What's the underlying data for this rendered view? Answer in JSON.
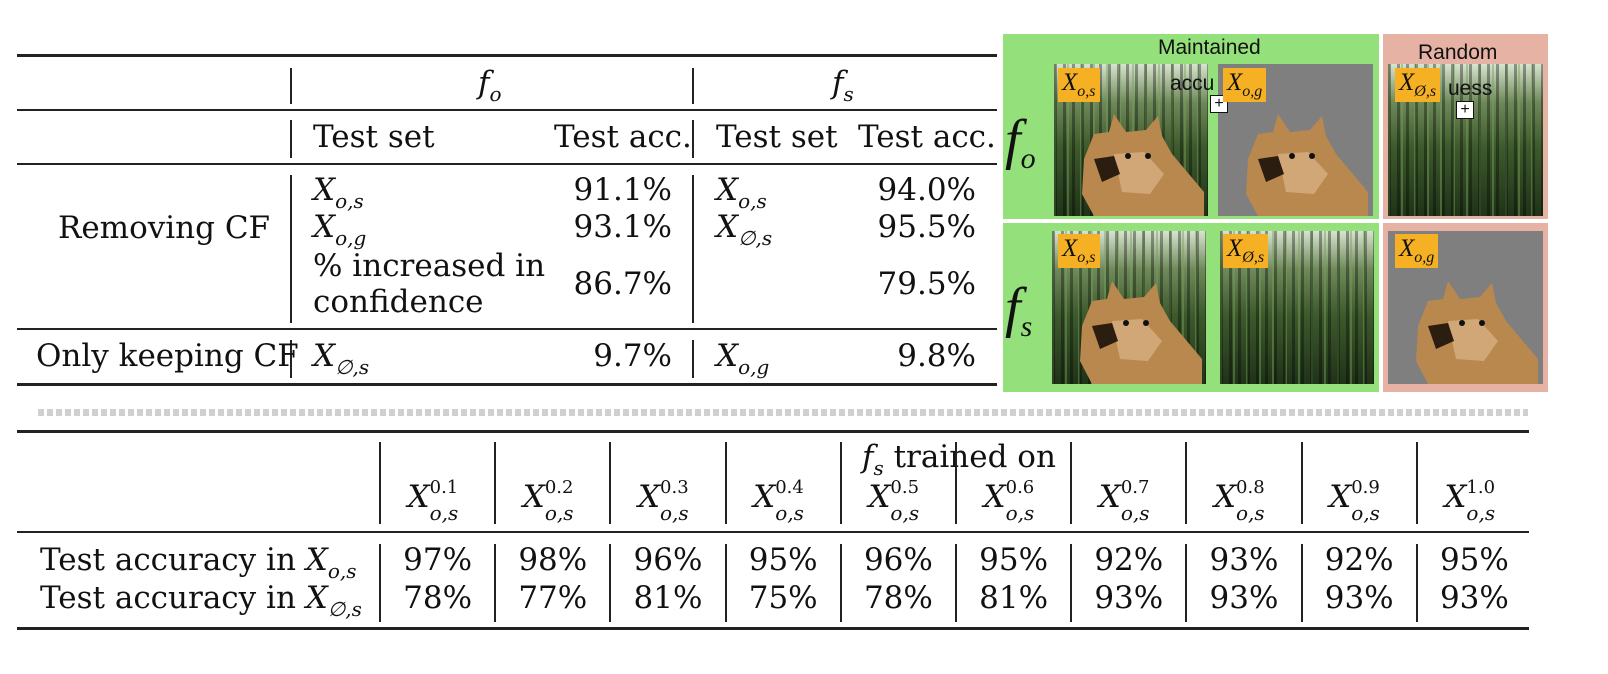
{
  "table1": {
    "group_fo": "f",
    "group_fo_sub": "o",
    "group_fs": "f",
    "group_fs_sub": "s",
    "col_test_set": "Test set",
    "col_test_acc": "Test acc.",
    "row_removing": "Removing CF",
    "row_keeping": "Only keeping CF",
    "r1_fo_set": "X",
    "r1_fo_set_sub": "o,s",
    "r1_fo_acc": "91.1%",
    "r1_fs_set": "X",
    "r1_fs_set_sub": "o,s",
    "r1_fs_acc": "94.0%",
    "r2_fo_set": "X",
    "r2_fo_set_sub": "o,g",
    "r2_fo_acc": "93.1%",
    "r2_fs_set": "X",
    "r2_fs_set_sub": "∅,s",
    "r2_fs_acc": "95.5%",
    "r3_label_line1": "% increased in",
    "r3_label_line2": "confidence",
    "r3_fo_acc": "86.7%",
    "r3_fs_acc": "79.5%",
    "r4_fo_set": "X",
    "r4_fo_set_sub": "∅,s",
    "r4_fo_acc": "9.7%",
    "r4_fs_set": "X",
    "r4_fs_set_sub": "o,g",
    "r4_fs_acc": "9.8%"
  },
  "panel": {
    "maintained_label": "Maintained",
    "accu_fragment": "accu",
    "uess_fragment": "uess",
    "random_label": "Random",
    "row_fo": "f",
    "row_fo_sub": "o",
    "row_fs": "f",
    "row_fs_sub": "s",
    "tag_fo_1": "X",
    "tag_fo_1_sub": "o,s",
    "tag_fo_2": "X",
    "tag_fo_2_sub": "o,g",
    "tag_fo_3": "X",
    "tag_fo_3_sub": "Ø,s",
    "tag_fs_1": "X",
    "tag_fs_1_sub": "o,s",
    "tag_fs_2": "X",
    "tag_fs_2_sub": "Ø,s",
    "tag_fs_3": "X",
    "tag_fs_3_sub": "o,g",
    "colors": {
      "maintained": "#94e07a",
      "random": "#e6b2a4",
      "tag": "#f5b023",
      "grey_bg": "#7f7f7f"
    }
  },
  "table2": {
    "header_f": "f",
    "header_f_sub": "s",
    "header_rest": " trained on",
    "row1_label": "Test accuracy in ",
    "row1_label_X": "X",
    "row1_label_sub": "o,s",
    "row2_label": "Test accuracy in ",
    "row2_label_X": "X",
    "row2_label_sub": "∅,s",
    "columns": [
      {
        "X": "X",
        "sup": "0.1",
        "sub": "o,s",
        "r1": "97%",
        "r2": "78%"
      },
      {
        "X": "X",
        "sup": "0.2",
        "sub": "o,s",
        "r1": "98%",
        "r2": "77%"
      },
      {
        "X": "X",
        "sup": "0.3",
        "sub": "o,s",
        "r1": "96%",
        "r2": "81%"
      },
      {
        "X": "X",
        "sup": "0.4",
        "sub": "o,s",
        "r1": "95%",
        "r2": "75%"
      },
      {
        "X": "X",
        "sup": "0.5",
        "sub": "o,s",
        "r1": "96%",
        "r2": "78%"
      },
      {
        "X": "X",
        "sup": "0.6",
        "sub": "o,s",
        "r1": "95%",
        "r2": "81%"
      },
      {
        "X": "X",
        "sup": "0.7",
        "sub": "o,s",
        "r1": "92%",
        "r2": "93%"
      },
      {
        "X": "X",
        "sup": "0.8",
        "sub": "o,s",
        "r1": "93%",
        "r2": "93%"
      },
      {
        "X": "X",
        "sup": "0.9",
        "sub": "o,s",
        "r1": "92%",
        "r2": "93%"
      },
      {
        "X": "X",
        "sup": "1.0",
        "sub": "o,s",
        "r1": "95%",
        "r2": "93%"
      }
    ]
  }
}
